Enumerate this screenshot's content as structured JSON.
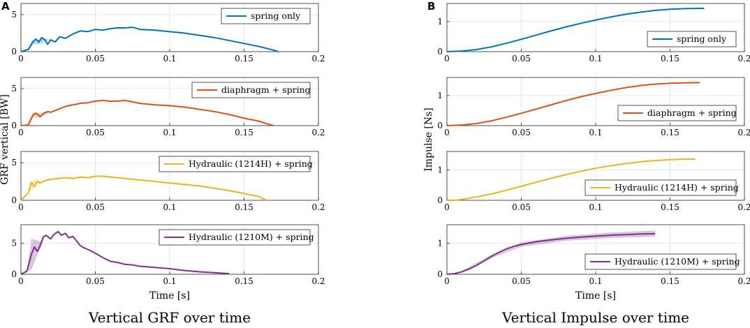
{
  "chart_data": [
    {
      "panel": "A",
      "type": "line",
      "caption": "Vertical GRF over time",
      "xlabel": "Time [s]",
      "ylabel": "GRF vertical [BW]",
      "xlim": [
        0,
        0.2
      ],
      "xticks": [
        "0",
        "0.05",
        "0.1",
        "0.15",
        "0.2"
      ],
      "grid": true,
      "subplots": [
        {
          "series_name": "spring only",
          "color": "#0072BD",
          "legend_position": "top-right",
          "ylim": [
            0,
            6.5
          ],
          "yticks": [
            0,
            5
          ],
          "x": [
            0,
            0.005,
            0.008,
            0.01,
            0.012,
            0.014,
            0.016,
            0.018,
            0.02,
            0.023,
            0.026,
            0.03,
            0.035,
            0.04,
            0.045,
            0.05,
            0.055,
            0.06,
            0.065,
            0.07,
            0.075,
            0.08,
            0.09,
            0.1,
            0.11,
            0.12,
            0.13,
            0.14,
            0.15,
            0.16,
            0.168,
            0.173
          ],
          "y": [
            0,
            0.3,
            1.3,
            1.7,
            1.3,
            1.9,
            1.6,
            1.0,
            1.6,
            1.3,
            2.0,
            1.8,
            2.4,
            2.8,
            2.7,
            3.0,
            2.9,
            3.1,
            3.2,
            3.2,
            3.3,
            3.0,
            2.9,
            2.7,
            2.5,
            2.2,
            1.9,
            1.5,
            1.1,
            0.7,
            0.3,
            0
          ],
          "band_x": [
            0.004,
            0.008,
            0.012,
            0.016,
            0.02
          ],
          "band_y": [
            0.0,
            0.3,
            0.3,
            0.2,
            0.0
          ]
        },
        {
          "series_name": "diaphragm + spring",
          "color": "#D95319",
          "legend_position": "top-right",
          "ylim": [
            0,
            6.5
          ],
          "yticks": [
            0,
            5
          ],
          "x": [
            0,
            0.005,
            0.008,
            0.01,
            0.013,
            0.015,
            0.018,
            0.02,
            0.025,
            0.03,
            0.035,
            0.04,
            0.045,
            0.05,
            0.055,
            0.06,
            0.065,
            0.07,
            0.08,
            0.09,
            0.1,
            0.11,
            0.12,
            0.13,
            0.14,
            0.15,
            0.16,
            0.166,
            0.17
          ],
          "y": [
            0,
            0.1,
            1.4,
            1.7,
            1.2,
            1.6,
            1.9,
            1.8,
            2.2,
            2.6,
            2.8,
            3.0,
            3.1,
            3.3,
            3.4,
            3.3,
            3.3,
            3.4,
            3.0,
            2.8,
            2.7,
            2.5,
            2.2,
            1.9,
            1.5,
            1.0,
            0.6,
            0.2,
            0
          ],
          "band_x": [
            0.004,
            0.008,
            0.012,
            0.016,
            0.02
          ],
          "band_y": [
            0.0,
            0.3,
            0.3,
            0.2,
            0.0
          ]
        },
        {
          "series_name": "Hydraulic (1214H) + spring",
          "color": "#EDB120",
          "legend_position": "top-right",
          "ylim": [
            0,
            6.5
          ],
          "yticks": [
            0,
            5
          ],
          "x": [
            0,
            0.005,
            0.007,
            0.009,
            0.011,
            0.013,
            0.016,
            0.02,
            0.025,
            0.03,
            0.035,
            0.04,
            0.045,
            0.05,
            0.055,
            0.06,
            0.07,
            0.08,
            0.09,
            0.1,
            0.11,
            0.12,
            0.13,
            0.14,
            0.15,
            0.16,
            0.165
          ],
          "y": [
            0,
            1.0,
            2.4,
            1.8,
            2.5,
            2.3,
            2.6,
            2.8,
            2.9,
            3.0,
            2.9,
            3.1,
            3.0,
            3.2,
            3.2,
            3.1,
            2.9,
            2.7,
            2.5,
            2.3,
            2.1,
            1.9,
            1.6,
            1.3,
            0.9,
            0.5,
            0
          ],
          "band_x": [
            0.005,
            0.008,
            0.011,
            0.014
          ],
          "band_y": [
            0.0,
            0.5,
            0.3,
            0.0
          ]
        },
        {
          "series_name": "Hydraulic (1210M) + spring",
          "color": "#7E2F8E",
          "legend_position": "top-right",
          "ylim": [
            0,
            8
          ],
          "yticks": [
            0,
            5
          ],
          "x": [
            0,
            0.004,
            0.007,
            0.009,
            0.011,
            0.013,
            0.015,
            0.017,
            0.02,
            0.022,
            0.025,
            0.027,
            0.03,
            0.032,
            0.035,
            0.038,
            0.04,
            0.043,
            0.046,
            0.05,
            0.055,
            0.06,
            0.065,
            0.07,
            0.075,
            0.08,
            0.09,
            0.1,
            0.11,
            0.12,
            0.13,
            0.14
          ],
          "y": [
            0,
            0.5,
            3.2,
            4.4,
            3.7,
            4.7,
            6.0,
            6.3,
            5.7,
            6.4,
            6.9,
            6.3,
            6.6,
            5.9,
            6.1,
            5.2,
            4.6,
            4.2,
            3.9,
            3.4,
            2.7,
            2.1,
            1.9,
            1.6,
            1.5,
            1.3,
            1.1,
            0.9,
            0.6,
            0.4,
            0.25,
            0.1
          ],
          "band_x": [
            0.004,
            0.007,
            0.01,
            0.013,
            0.016
          ],
          "band_y": [
            0.0,
            2.5,
            1.5,
            0.6,
            0.0
          ]
        }
      ]
    },
    {
      "panel": "B",
      "type": "line",
      "caption": "Vertical Impulse over time",
      "xlabel": "Time [s]",
      "ylabel": "Impulse [Ns]",
      "xlim": [
        0,
        0.2
      ],
      "xticks": [
        "0",
        "0.05",
        "0.1",
        "0.15",
        "0.2"
      ],
      "grid": true,
      "subplots": [
        {
          "series_name": "spring only",
          "color": "#0072BD",
          "legend_position": "bottom-right",
          "ylim": [
            0,
            1.6
          ],
          "yticks": [
            0,
            1
          ],
          "x": [
            0,
            0.01,
            0.02,
            0.03,
            0.04,
            0.05,
            0.06,
            0.07,
            0.08,
            0.09,
            0.1,
            0.11,
            0.12,
            0.13,
            0.14,
            0.15,
            0.16,
            0.173
          ],
          "y": [
            0,
            0.02,
            0.07,
            0.16,
            0.28,
            0.41,
            0.55,
            0.69,
            0.82,
            0.94,
            1.05,
            1.15,
            1.24,
            1.31,
            1.37,
            1.41,
            1.43,
            1.44
          ],
          "band_x": [],
          "band_y": []
        },
        {
          "series_name": "diaphragm + spring",
          "color": "#D95319",
          "legend_position": "bottom-right",
          "ylim": [
            0,
            1.6
          ],
          "yticks": [
            0,
            1
          ],
          "x": [
            0,
            0.01,
            0.02,
            0.03,
            0.04,
            0.05,
            0.06,
            0.07,
            0.08,
            0.09,
            0.1,
            0.11,
            0.12,
            0.13,
            0.14,
            0.15,
            0.16,
            0.17
          ],
          "y": [
            0,
            0.02,
            0.07,
            0.16,
            0.28,
            0.41,
            0.55,
            0.69,
            0.83,
            0.96,
            1.07,
            1.17,
            1.26,
            1.33,
            1.38,
            1.41,
            1.42,
            1.43
          ],
          "band_x": [],
          "band_y": []
        },
        {
          "series_name": "Hydraulic (1214H) + spring",
          "color": "#EDB120",
          "legend_position": "bottom-right",
          "ylim": [
            0,
            1.6
          ],
          "yticks": [
            0,
            1
          ],
          "x": [
            0,
            0.005,
            0.01,
            0.02,
            0.03,
            0.04,
            0.05,
            0.06,
            0.07,
            0.08,
            0.09,
            0.1,
            0.11,
            0.12,
            0.13,
            0.14,
            0.15,
            0.16,
            0.167
          ],
          "y": [
            0,
            0.0,
            0.03,
            0.11,
            0.21,
            0.33,
            0.46,
            0.59,
            0.72,
            0.84,
            0.95,
            1.05,
            1.13,
            1.2,
            1.26,
            1.3,
            1.33,
            1.35,
            1.35
          ],
          "band_x": [],
          "band_y": []
        },
        {
          "series_name": "Hydraulic (1210M) + spring",
          "color": "#7E2F8E",
          "legend_position": "bottom-right",
          "ylim": [
            0,
            1.6
          ],
          "yticks": [
            0,
            1
          ],
          "x": [
            0,
            0.005,
            0.01,
            0.015,
            0.02,
            0.025,
            0.03,
            0.035,
            0.04,
            0.045,
            0.05,
            0.06,
            0.07,
            0.08,
            0.09,
            0.1,
            0.11,
            0.12,
            0.13,
            0.14
          ],
          "y": [
            0,
            0.02,
            0.08,
            0.17,
            0.29,
            0.43,
            0.58,
            0.71,
            0.82,
            0.9,
            0.96,
            1.05,
            1.11,
            1.16,
            1.2,
            1.23,
            1.26,
            1.28,
            1.3,
            1.31
          ],
          "band_x": [
            0.01,
            0.03,
            0.05,
            0.08,
            0.11,
            0.14
          ],
          "band_y": [
            0.03,
            0.06,
            0.07,
            0.08,
            0.09,
            0.1
          ]
        }
      ]
    }
  ]
}
